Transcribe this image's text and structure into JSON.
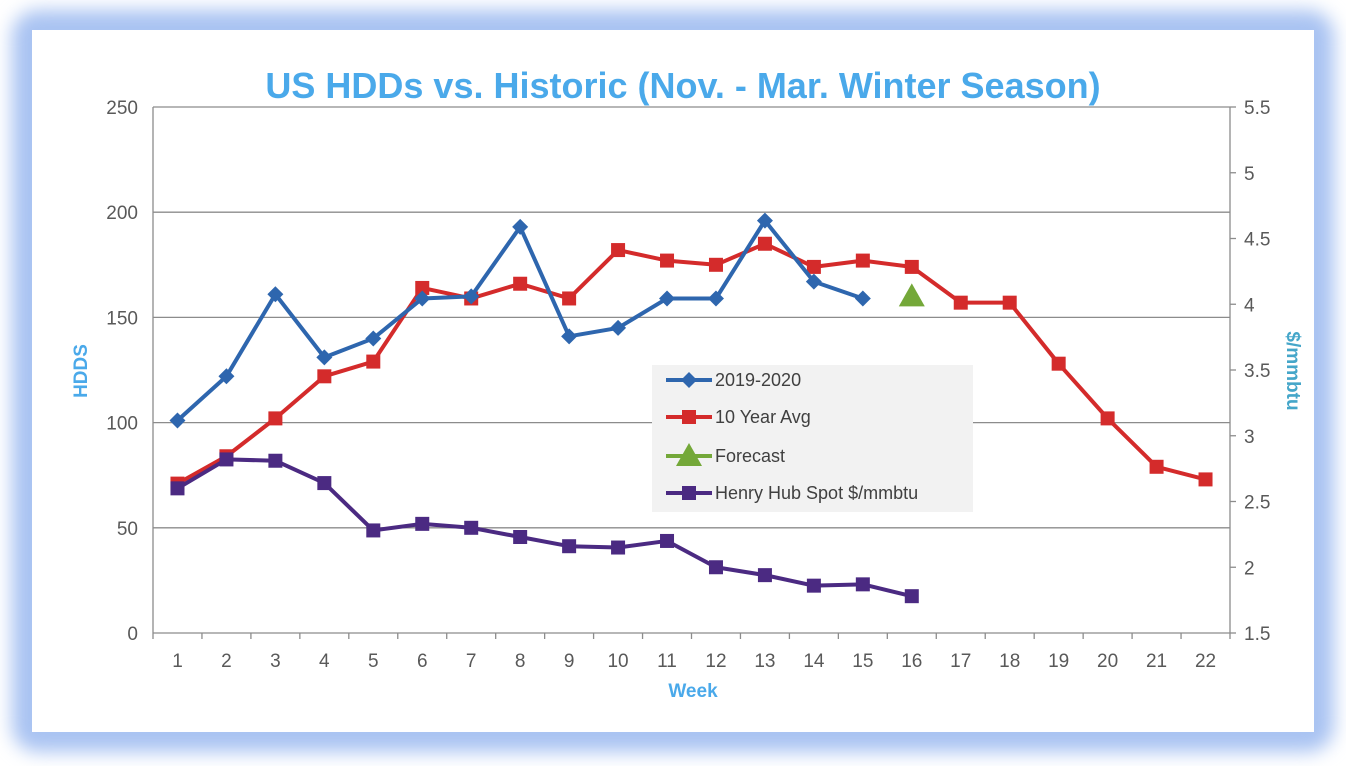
{
  "chart_data": {
    "type": "line",
    "title": "US HDDs vs. Historic (Nov. - Mar. Winter Season)",
    "xlabel": "Week",
    "ylabel": "HDDS",
    "y2label": "$/mmbtu",
    "ylim": [
      0,
      250
    ],
    "y2lim": [
      1.5,
      5.5
    ],
    "yticks": [
      "0",
      "50",
      "100",
      "150",
      "200",
      "250"
    ],
    "y2ticks": [
      "1.5",
      "2",
      "2.5",
      "3",
      "3.5",
      "4",
      "4.5",
      "5",
      "5.5"
    ],
    "categories": [
      "1",
      "2",
      "3",
      "4",
      "5",
      "6",
      "7",
      "8",
      "9",
      "10",
      "11",
      "12",
      "13",
      "14",
      "15",
      "16",
      "17",
      "18",
      "19",
      "20",
      "21",
      "22"
    ],
    "grid": "horizontal",
    "legend_position": "center-right",
    "series": [
      {
        "name": "2019-2020",
        "axis": "left",
        "marker": "diamond",
        "color": "#2e66ae",
        "x": [
          1,
          2,
          3,
          4,
          5,
          6,
          7,
          8,
          9,
          10,
          11,
          12,
          13,
          14,
          15
        ],
        "values": [
          101,
          122,
          161,
          131,
          140,
          159,
          160,
          193,
          141,
          145,
          159,
          159,
          196,
          167,
          159
        ]
      },
      {
        "name": "10 Year Avg",
        "axis": "left",
        "marker": "square",
        "color": "#d42b2b",
        "x": [
          1,
          2,
          3,
          4,
          5,
          6,
          7,
          8,
          9,
          10,
          11,
          12,
          13,
          14,
          15,
          16,
          17,
          18,
          19,
          20,
          21,
          22
        ],
        "values": [
          71,
          84,
          102,
          122,
          129,
          164,
          159,
          166,
          159,
          182,
          177,
          175,
          185,
          174,
          177,
          174,
          157,
          157,
          128,
          102,
          79,
          73
        ]
      },
      {
        "name": "Forecast",
        "axis": "left",
        "marker": "triangle",
        "color": "#74a839",
        "x": [
          16
        ],
        "values": [
          160
        ]
      },
      {
        "name": "Henry Hub Spot $/mmbtu",
        "axis": "right",
        "marker": "square",
        "color": "#4b2a82",
        "x": [
          1,
          2,
          3,
          4,
          5,
          6,
          7,
          8,
          9,
          10,
          11,
          12,
          13,
          14,
          15,
          16
        ],
        "values": [
          2.6,
          2.82,
          2.81,
          2.64,
          2.28,
          2.33,
          2.3,
          2.23,
          2.16,
          2.15,
          2.2,
          2.0,
          1.94,
          1.86,
          1.87,
          1.78
        ]
      }
    ]
  }
}
